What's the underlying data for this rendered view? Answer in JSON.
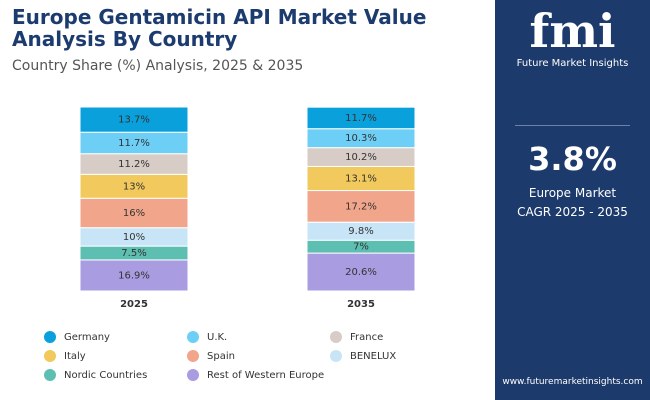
{
  "chart_data": {
    "type": "bar",
    "stacked": true,
    "title": "Europe Gentamicin API Market Value Analysis By Country",
    "subtitle": "Country Share (%) Analysis, 2025 & 2035",
    "categories": [
      "2025",
      "2035"
    ],
    "series": [
      {
        "name": "Germany",
        "color": "#0aa0dc",
        "values": [
          13.7,
          11.7
        ],
        "value_labels": [
          "13.7%",
          "11.7%"
        ]
      },
      {
        "name": "U.K.",
        "color": "#6dcff6",
        "values": [
          11.7,
          10.3
        ],
        "value_labels": [
          "11.7%",
          "10.3%"
        ]
      },
      {
        "name": "France",
        "color": "#d8ccc7",
        "values": [
          11.2,
          10.2
        ],
        "value_labels": [
          "11.2%",
          "10.2%"
        ]
      },
      {
        "name": "Italy",
        "color": "#f1c95c",
        "values": [
          13,
          13.1
        ],
        "value_labels": [
          "13%",
          "13.1%"
        ]
      },
      {
        "name": "Spain",
        "color": "#f1a68b",
        "values": [
          16,
          17.2
        ],
        "value_labels": [
          "16%",
          "17.2%"
        ]
      },
      {
        "name": "BENELUX",
        "color": "#c7e5f6",
        "values": [
          10,
          9.8
        ],
        "value_labels": [
          "10%",
          "9.8%"
        ]
      },
      {
        "name": "Nordic Countries",
        "color": "#5cbfb2",
        "values": [
          7.5,
          7
        ],
        "value_labels": [
          "7.5%",
          "7%"
        ]
      },
      {
        "name": "Rest of Western Europe",
        "color": "#aa9ce0",
        "values": [
          16.9,
          20.6
        ],
        "value_labels": [
          "16.9%",
          "20.6%"
        ]
      }
    ]
  },
  "sidebar": {
    "logo": "fmi",
    "brand": "Future Market Insights",
    "cagr": "3.8%",
    "region": "Europe Market",
    "period": "CAGR 2025 - 2035",
    "url": "www.futuremarketinsights.com"
  }
}
